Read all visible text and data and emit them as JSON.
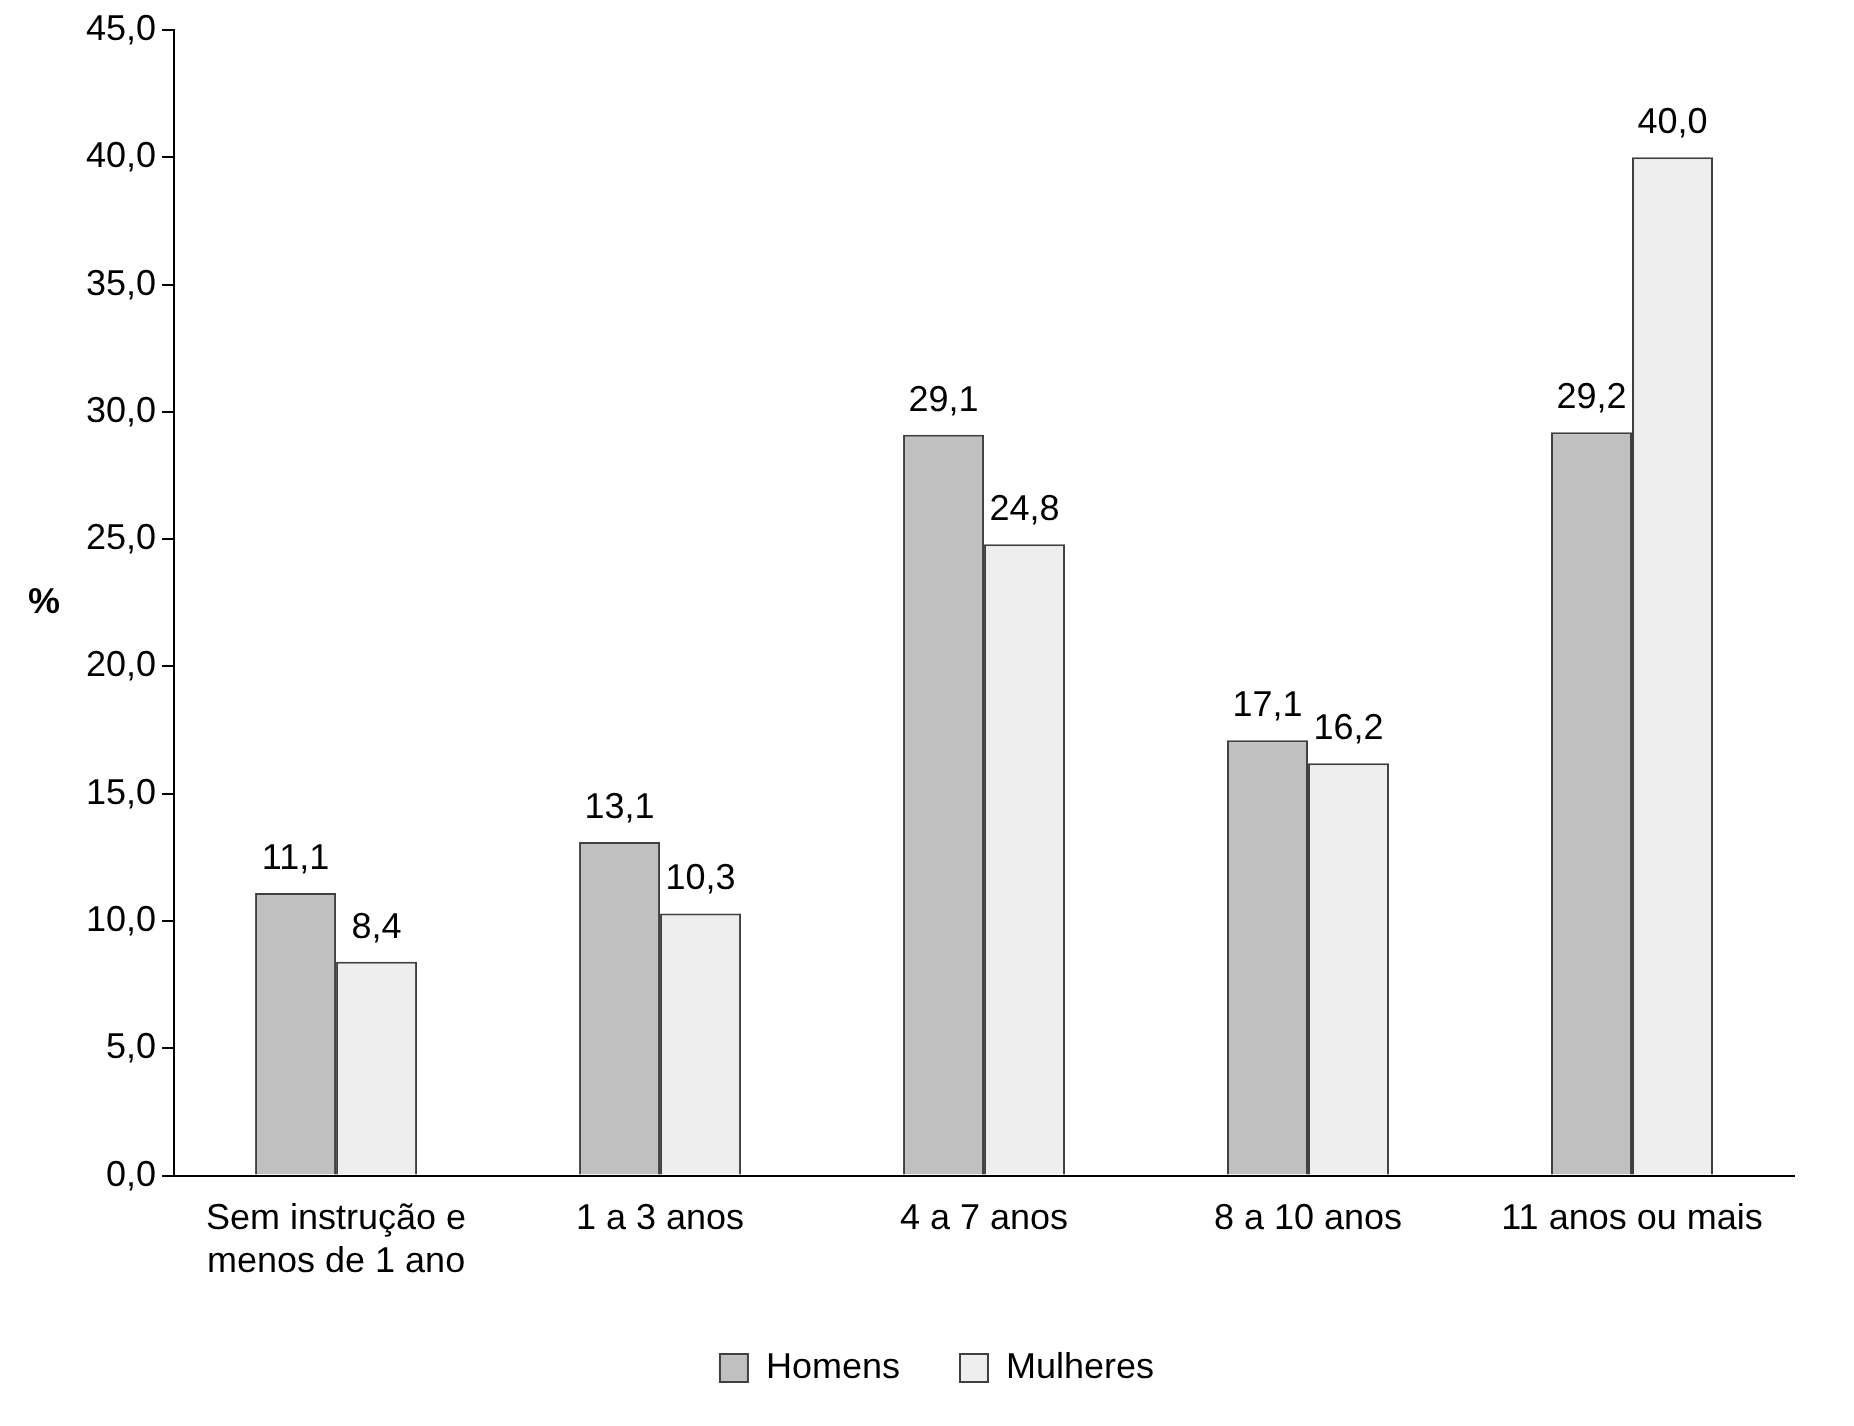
{
  "chart_data": {
    "type": "bar",
    "ylabel": "%",
    "categories": [
      "Sem instrução e menos de 1 ano",
      "1 a 3 anos",
      "4 a 7 anos",
      "8 a 10 anos",
      "11 anos ou mais"
    ],
    "series": [
      {
        "name": "Homens",
        "color": "#c0c0c0",
        "values": [
          11.1,
          13.1,
          29.1,
          17.1,
          29.2
        ],
        "value_labels": [
          "11,1",
          "13,1",
          "29,1",
          "17,1",
          "29,2"
        ]
      },
      {
        "name": "Mulheres",
        "color": "#eeeeee",
        "values": [
          8.4,
          10.3,
          24.8,
          16.2,
          40.0
        ],
        "value_labels": [
          "8,4",
          "10,3",
          "24,8",
          "16,2",
          "40,0"
        ]
      }
    ],
    "ylim": [
      0,
      45
    ],
    "yticks": [
      {
        "value": 0,
        "label": "0,0"
      },
      {
        "value": 5,
        "label": "5,0"
      },
      {
        "value": 10,
        "label": "10,0"
      },
      {
        "value": 15,
        "label": "15,0"
      },
      {
        "value": 20,
        "label": "20,0"
      },
      {
        "value": 25,
        "label": "25,0"
      },
      {
        "value": 30,
        "label": "30,0"
      },
      {
        "value": 35,
        "label": "35,0"
      },
      {
        "value": 40,
        "label": "40,0"
      },
      {
        "value": 45,
        "label": "45,0"
      }
    ],
    "grid": false,
    "legend": "bottom"
  }
}
